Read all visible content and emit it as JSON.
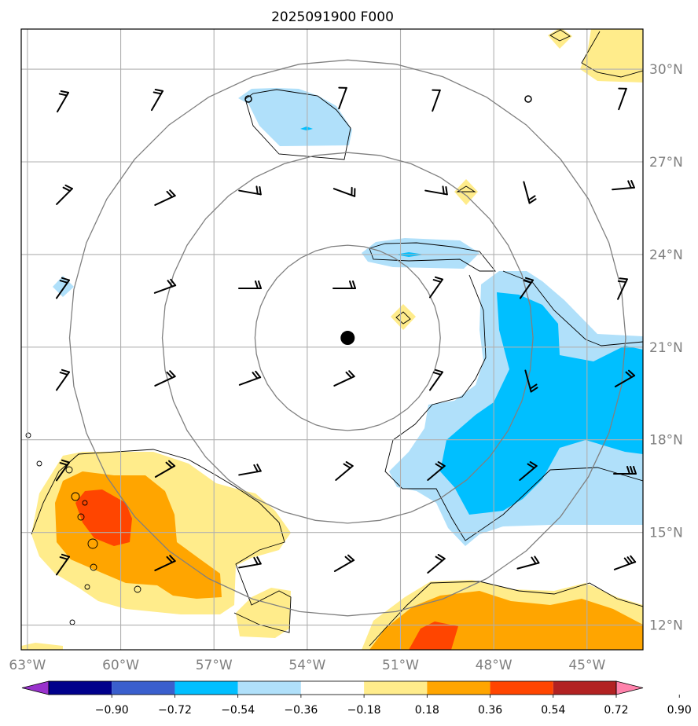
{
  "title": "2025091900 F000",
  "map": {
    "lon_range": [
      -63.2,
      -43.2
    ],
    "lat_range": [
      11.2,
      31.3
    ],
    "lon_ticks": [
      {
        "value": -63,
        "label": "63°W"
      },
      {
        "value": -60,
        "label": "60°W"
      },
      {
        "value": -57,
        "label": "57°W"
      },
      {
        "value": -54,
        "label": "54°W"
      },
      {
        "value": -51,
        "label": "51°W"
      },
      {
        "value": -48,
        "label": "48°W"
      },
      {
        "value": -45,
        "label": "45°W"
      }
    ],
    "lat_ticks": [
      {
        "value": 12,
        "label": "12°N"
      },
      {
        "value": 15,
        "label": "15°N"
      },
      {
        "value": 18,
        "label": "18°N"
      },
      {
        "value": 21,
        "label": "21°N"
      },
      {
        "value": 24,
        "label": "24°N"
      },
      {
        "value": 27,
        "label": "27°N"
      },
      {
        "value": 30,
        "label": "30°N"
      }
    ],
    "storm_center": {
      "lon": -52.7,
      "lat": 21.3
    },
    "range_rings_deg": [
      3,
      6,
      9
    ]
  },
  "colorbar": {
    "labels": [
      "−0.90",
      "−0.72",
      "−0.54",
      "−0.36",
      "−0.18",
      "0.18",
      "0.36",
      "0.54",
      "0.72",
      "0.90"
    ],
    "colors": [
      "#9932cc",
      "#00008b",
      "#3a5fcd",
      "#00bfff",
      "#b0e0fa",
      "#ffffff",
      "#ffec8b",
      "#ffa500",
      "#ff4500",
      "#b22222",
      "#ff82ab"
    ]
  },
  "fill_colors": {
    "light_blue": "#b0e0fa",
    "deep_sky_blue": "#00bfff",
    "light_yellow": "#ffec8b",
    "orange": "#ffa500",
    "orange_red": "#ff4500"
  }
}
